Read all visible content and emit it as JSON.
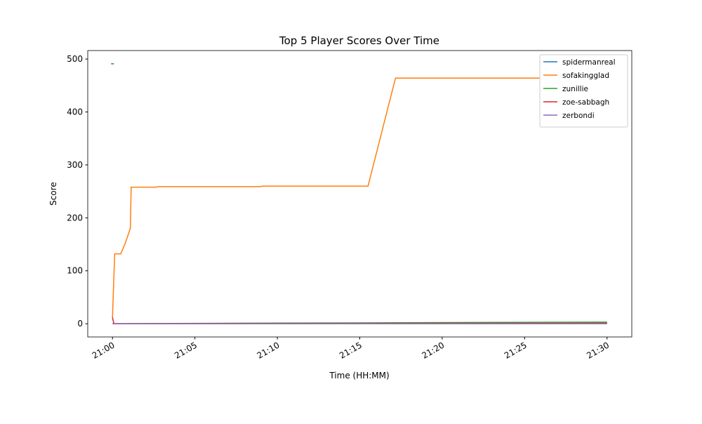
{
  "chart_data": {
    "type": "line",
    "title": "Top 5 Player Scores Over Time",
    "x_label": "Time (HH:MM)",
    "y_label": "Score",
    "xlim": [
      "20:58:30",
      "21:31:30"
    ],
    "ylim": [
      -25,
      516
    ],
    "xticks": [
      {
        "value": "21:00:00",
        "label": "21:00"
      },
      {
        "value": "21:05:00",
        "label": "21:05"
      },
      {
        "value": "21:10:00",
        "label": "21:10"
      },
      {
        "value": "21:15:00",
        "label": "21:15"
      },
      {
        "value": "21:20:00",
        "label": "21:20"
      },
      {
        "value": "21:25:00",
        "label": "21:25"
      },
      {
        "value": "21:30:00",
        "label": "21:30"
      }
    ],
    "yticks": [
      0,
      100,
      200,
      300,
      400,
      500
    ],
    "legend": "upper right",
    "series": [
      {
        "name": "spidermanreal",
        "color": "#1f77b4",
        "x": [
          "20:59:55",
          "21:00:05"
        ],
        "values": [
          491,
          491
        ]
      },
      {
        "name": "sofakingglad",
        "color": "#ff7f0e",
        "x": [
          "21:00:00",
          "21:00:08",
          "21:00:30",
          "21:00:45",
          "21:00:55",
          "21:01:05",
          "21:01:08",
          "21:02:40",
          "21:02:45",
          "21:09:00",
          "21:09:05",
          "21:15:30",
          "21:17:10",
          "21:30:00"
        ],
        "values": [
          12,
          132,
          132,
          150,
          165,
          180,
          258,
          258,
          259,
          259,
          260,
          260,
          464,
          464
        ]
      },
      {
        "name": "zunillie",
        "color": "#2ca02c",
        "x": [
          "21:00:00",
          "21:08:00",
          "21:14:00",
          "21:18:40",
          "21:29:20",
          "21:30:00"
        ],
        "values": [
          0,
          1,
          1.5,
          2,
          3,
          3
        ]
      },
      {
        "name": "zoe-sabbagh",
        "color": "#d62728",
        "x": [
          "21:00:00",
          "21:00:05",
          "21:15:00",
          "21:30:00"
        ],
        "values": [
          12,
          0,
          0.5,
          1
        ]
      },
      {
        "name": "zerbondi",
        "color": "#9467bd",
        "x": [
          "21:00:00",
          "21:30:00"
        ],
        "values": [
          0,
          0
        ]
      }
    ]
  }
}
